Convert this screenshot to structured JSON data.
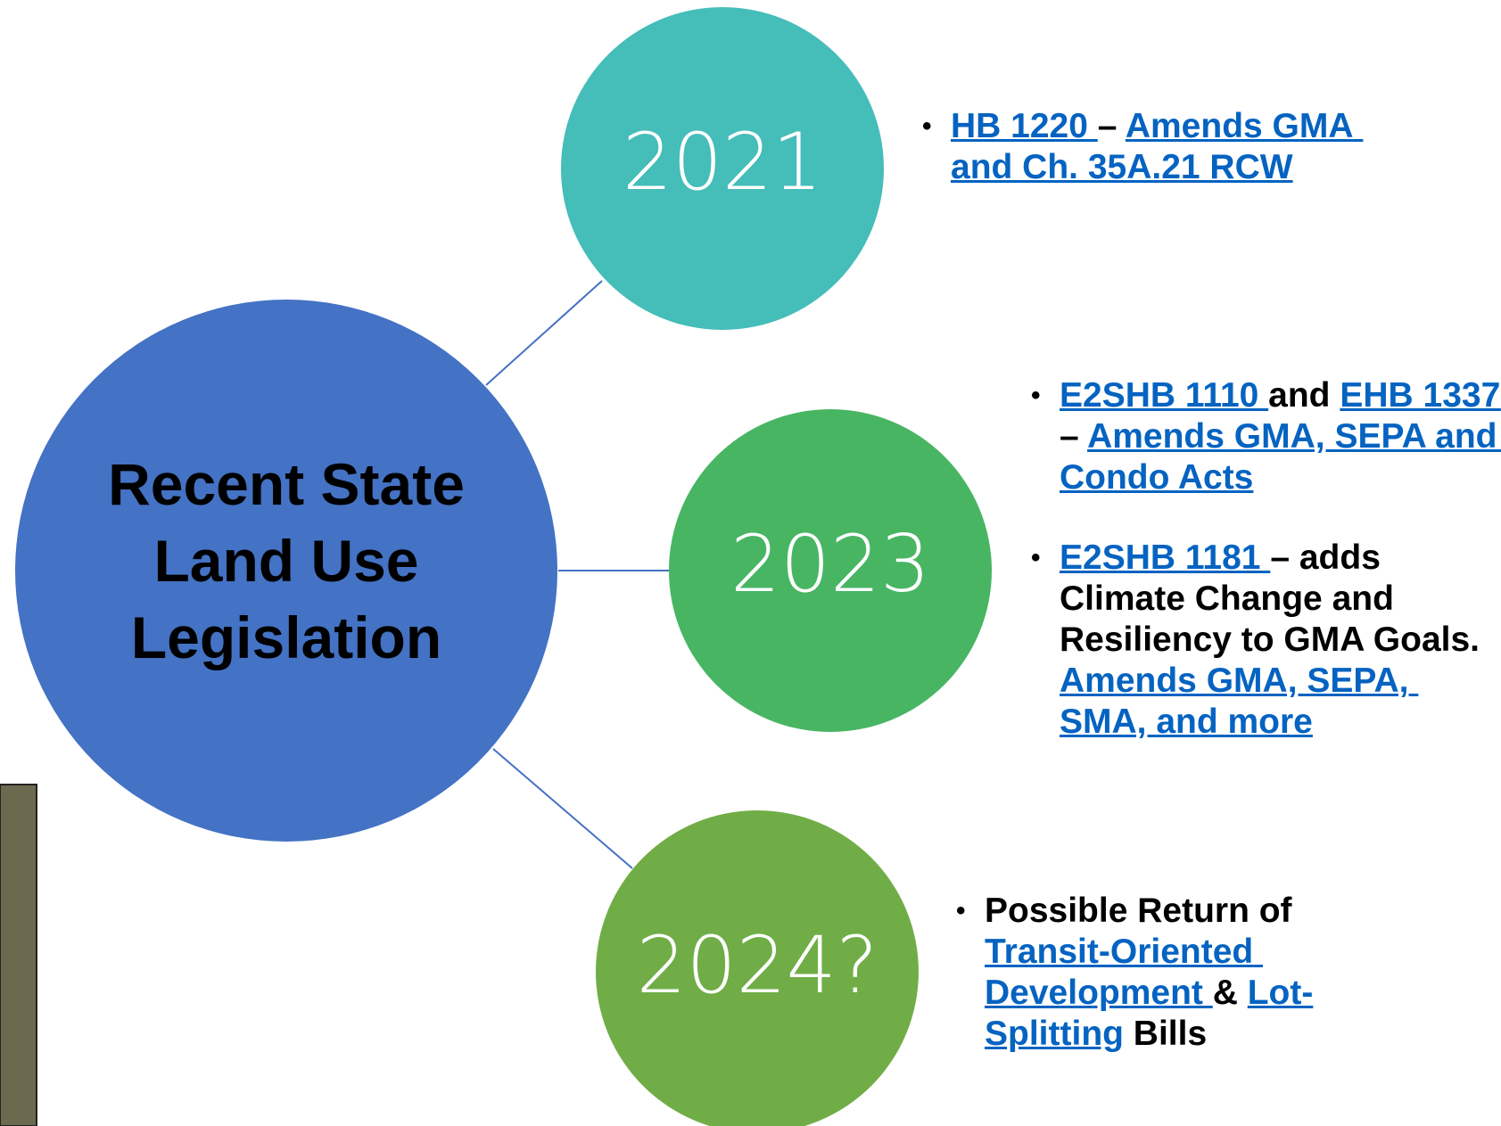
{
  "central": {
    "title": "Recent State Land Use Legislation"
  },
  "nodes": [
    {
      "label": "2021",
      "items": [
        [
          {
            "text": "HB 1220 ",
            "link": true
          },
          {
            "text": "– ",
            "link": false
          },
          {
            "text": "Amends GMA and Ch. 35A.21 RCW",
            "link": true
          }
        ]
      ]
    },
    {
      "label": "2023",
      "items": [
        [
          {
            "text": "E2SHB 1110 ",
            "link": true
          },
          {
            "text": "and ",
            "link": false
          },
          {
            "text": "EHB 1337 ",
            "link": true
          },
          {
            "text": "– ",
            "link": false
          },
          {
            "text": "Amends GMA, SEPA and Condo Acts",
            "link": true
          }
        ],
        [
          {
            "text": "E2SHB 1181 ",
            "link": true
          },
          {
            "text": "– adds Climate Change and Resiliency to GMA Goals.  ",
            "link": false
          },
          {
            "text": "Amends GMA, SEPA, SMA, and more",
            "link": true
          }
        ]
      ]
    },
    {
      "label": "2024?",
      "items": [
        [
          {
            "text": "Possible Return of ",
            "link": false
          },
          {
            "text": "Transit-Oriented Development ",
            "link": true
          },
          {
            "text": "& ",
            "link": false
          },
          {
            "text": "Lot-Splitting",
            "link": true
          },
          {
            "text": " Bills",
            "link": false
          }
        ]
      ]
    }
  ]
}
